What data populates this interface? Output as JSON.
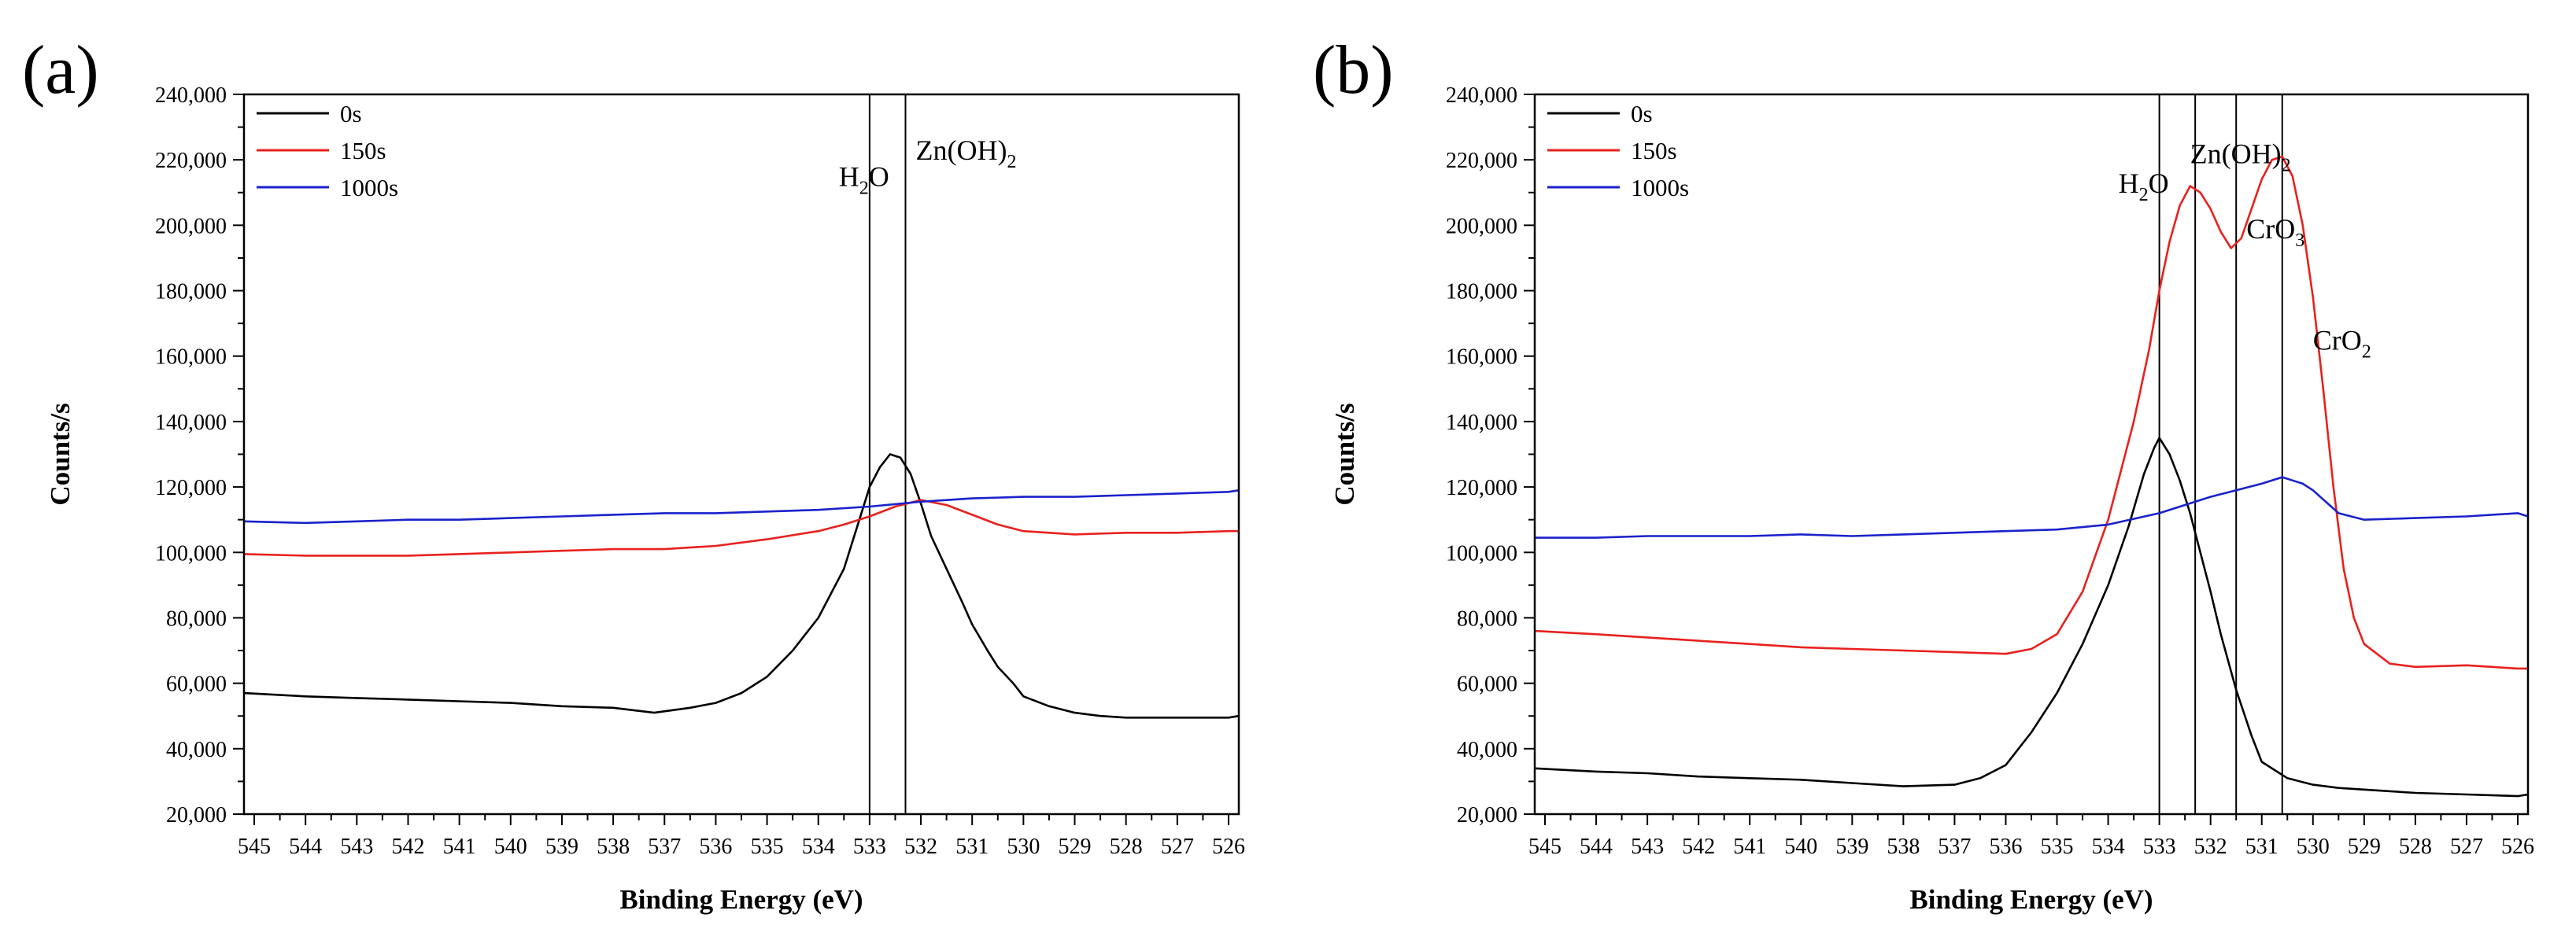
{
  "chart_data": [
    {
      "panel_label": "(a)",
      "type": "line",
      "xlabel": "Binding Energy (eV)",
      "ylabel": "Counts/s",
      "xlim": [
        545.2,
        525.8
      ],
      "ylim": [
        20000,
        240000
      ],
      "x_ticks": [
        545,
        544,
        543,
        542,
        541,
        540,
        539,
        538,
        537,
        536,
        535,
        534,
        533,
        532,
        531,
        530,
        529,
        528,
        527,
        526
      ],
      "y_ticks": [
        20000,
        40000,
        60000,
        80000,
        100000,
        120000,
        140000,
        160000,
        180000,
        200000,
        220000,
        240000
      ],
      "y_tick_labels": [
        "20,000",
        "40,000",
        "60,000",
        "80,000",
        "100,000",
        "120,000",
        "140,000",
        "160,000",
        "180,000",
        "200,000",
        "220,000",
        "240,000"
      ],
      "reference_lines": [
        533.0,
        532.3
      ],
      "annotations": [
        {
          "main": "H",
          "sub": "2",
          "tail": "O",
          "x": 533.6,
          "y": 212000
        },
        {
          "main": "Zn(OH)",
          "sub": "2",
          "tail": "",
          "x": 532.1,
          "y": 220000
        }
      ],
      "series": [
        {
          "name": "0s",
          "color": "#000000",
          "x": [
            545.2,
            544,
            543,
            542,
            541,
            540,
            539,
            538,
            537.2,
            536.5,
            536,
            535.5,
            535,
            534.5,
            534,
            533.5,
            533.2,
            533,
            532.8,
            532.6,
            532.4,
            532.2,
            532,
            531.8,
            531.5,
            531.2,
            531,
            530.7,
            530.5,
            530.2,
            530,
            529.5,
            529,
            528.5,
            528,
            527,
            526,
            525.8
          ],
          "y": [
            57000,
            56000,
            55500,
            55000,
            54500,
            54000,
            53000,
            52500,
            51000,
            52500,
            54000,
            57000,
            62000,
            70000,
            80000,
            95000,
            110000,
            120000,
            126000,
            130000,
            129000,
            124000,
            115000,
            105000,
            95000,
            85000,
            78000,
            70000,
            65000,
            60000,
            56000,
            53000,
            51000,
            50000,
            49500,
            49500,
            49500,
            50000
          ]
        },
        {
          "name": "150s",
          "color": "#e8211e",
          "x": [
            545.2,
            544,
            543,
            542,
            541,
            540,
            539,
            538,
            537,
            536,
            535,
            534,
            533.5,
            533,
            532.5,
            532,
            531.5,
            531,
            530.5,
            530,
            529.5,
            529,
            528,
            527,
            526,
            525.8
          ],
          "y": [
            99500,
            99000,
            99000,
            99000,
            99500,
            100000,
            100500,
            101000,
            101000,
            102000,
            104000,
            106500,
            108500,
            111000,
            114000,
            116000,
            114500,
            111500,
            108500,
            106500,
            106000,
            105500,
            106000,
            106000,
            106500,
            106500
          ]
        },
        {
          "name": "1000s",
          "color": "#1a22cc",
          "x": [
            545.2,
            544,
            543,
            542,
            541,
            540,
            539,
            538,
            537,
            536,
            535,
            534,
            533,
            532,
            531,
            530,
            529,
            528,
            527,
            526,
            525.8
          ],
          "y": [
            109500,
            109000,
            109500,
            110000,
            110000,
            110500,
            111000,
            111500,
            112000,
            112000,
            112500,
            113000,
            114000,
            115500,
            116500,
            117000,
            117000,
            117500,
            118000,
            118500,
            119000
          ]
        }
      ]
    },
    {
      "panel_label": "(b)",
      "type": "line",
      "xlabel": "Binding Energy (eV)",
      "ylabel": "Counts/s",
      "xlim": [
        545.2,
        525.8
      ],
      "ylim": [
        20000,
        240000
      ],
      "x_ticks": [
        545,
        544,
        543,
        542,
        541,
        540,
        539,
        538,
        537,
        536,
        535,
        534,
        533,
        532,
        531,
        530,
        529,
        528,
        527,
        526
      ],
      "y_ticks": [
        20000,
        40000,
        60000,
        80000,
        100000,
        120000,
        140000,
        160000,
        180000,
        200000,
        220000,
        240000
      ],
      "y_tick_labels": [
        "20,000",
        "40,000",
        "60,000",
        "80,000",
        "100,000",
        "120,000",
        "140,000",
        "160,000",
        "180,000",
        "200,000",
        "220,000",
        "240,000"
      ],
      "reference_lines": [
        533.0,
        532.3,
        531.5,
        530.6
      ],
      "annotations": [
        {
          "main": "H",
          "sub": "2",
          "tail": "O",
          "x": 533.8,
          "y": 210000
        },
        {
          "main": "Zn(OH)",
          "sub": "2",
          "tail": "",
          "x": 532.4,
          "y": 219000
        },
        {
          "main": "CrO",
          "sub": "3",
          "tail": "",
          "x": 531.3,
          "y": 196000
        },
        {
          "main": "CrO",
          "sub": "2",
          "tail": "",
          "x": 530.0,
          "y": 162000
        }
      ],
      "series": [
        {
          "name": "0s",
          "color": "#000000",
          "x": [
            545.2,
            544,
            543,
            542,
            541,
            540,
            539,
            538,
            537,
            536.5,
            536,
            535.5,
            535,
            534.5,
            534,
            533.6,
            533.3,
            533.1,
            533,
            532.8,
            532.6,
            532.4,
            532.2,
            532,
            531.8,
            531.5,
            531.2,
            531,
            530.5,
            530,
            529.5,
            529,
            528,
            527,
            526,
            525.8
          ],
          "y": [
            34000,
            33000,
            32500,
            31500,
            31000,
            30500,
            29500,
            28500,
            29000,
            31000,
            35000,
            45000,
            57000,
            72000,
            90000,
            108000,
            124000,
            132000,
            135000,
            130000,
            122000,
            112000,
            100000,
            88000,
            75000,
            58000,
            44000,
            36000,
            31000,
            29000,
            28000,
            27500,
            26500,
            26000,
            25500,
            26000
          ]
        },
        {
          "name": "150s",
          "color": "#e8211e",
          "x": [
            545.2,
            544,
            543,
            542,
            541,
            540,
            539,
            538,
            537,
            536,
            535.5,
            535,
            534.5,
            534,
            533.5,
            533.2,
            533,
            532.8,
            532.6,
            532.4,
            532.2,
            532,
            531.8,
            531.6,
            531.4,
            531.2,
            531,
            530.8,
            530.6,
            530.4,
            530.2,
            530,
            529.8,
            529.6,
            529.4,
            529.2,
            529,
            528.5,
            528,
            527,
            526,
            525.8
          ],
          "y": [
            76000,
            75000,
            74000,
            73000,
            72000,
            71000,
            70500,
            70000,
            69500,
            69000,
            70500,
            75000,
            88000,
            110000,
            140000,
            162000,
            180000,
            195000,
            206000,
            212000,
            210000,
            205000,
            198000,
            193000,
            196000,
            205000,
            214000,
            220000,
            221000,
            215000,
            200000,
            178000,
            150000,
            120000,
            95000,
            80000,
            72000,
            66000,
            65000,
            65500,
            64500,
            64500
          ]
        },
        {
          "name": "1000s",
          "color": "#1a22cc",
          "x": [
            545.2,
            544,
            543,
            542,
            541,
            540,
            539,
            538,
            537,
            536,
            535,
            534,
            533,
            532,
            531.5,
            531,
            530.6,
            530.2,
            530,
            529.5,
            529,
            528,
            527,
            526,
            525.8
          ],
          "y": [
            104500,
            104500,
            105000,
            105000,
            105000,
            105500,
            105000,
            105500,
            106000,
            106500,
            107000,
            108500,
            112000,
            117000,
            119000,
            121000,
            123000,
            121000,
            119000,
            112000,
            110000,
            110500,
            111000,
            112000,
            111000
          ]
        }
      ]
    }
  ]
}
